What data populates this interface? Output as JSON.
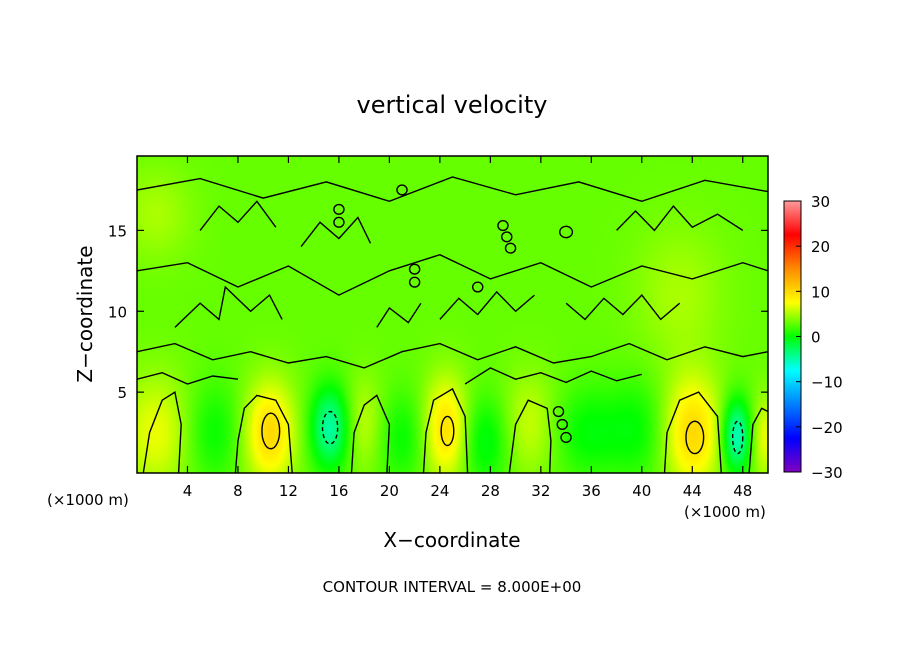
{
  "chart_data": {
    "type": "heatmap",
    "title": "vertical velocity",
    "xlabel": "X−coordinate",
    "ylabel": "Z−coordinate",
    "x_unit": "(×1000 m)",
    "x_unit_right": "(×1000 m)",
    "footer": "CONTOUR INTERVAL = 8.000E+00",
    "xlim": [
      0,
      50
    ],
    "ylim": [
      0,
      19.6
    ],
    "x_ticks": [
      4,
      8,
      12,
      16,
      20,
      24,
      28,
      32,
      36,
      40,
      44,
      48
    ],
    "x_tick_labels": [
      "4",
      "8",
      "12",
      "16",
      "20",
      "24",
      "28",
      "32",
      "36",
      "40",
      "44",
      "48"
    ],
    "y_ticks": [
      5,
      10,
      15
    ],
    "y_tick_labels": [
      "5",
      "10",
      "15"
    ],
    "colorbar": {
      "range": [
        -30,
        30
      ],
      "ticks": [
        30,
        20,
        10,
        0,
        -10,
        -20,
        -30
      ],
      "tick_labels": [
        "30",
        "20",
        "10",
        "0",
        "−10",
        "−20",
        "−30"
      ],
      "colors": [
        "#ff9a9a",
        "#ff0000",
        "#ff8a00",
        "#ffff00",
        "#00ff00",
        "#00ffff",
        "#0080ff",
        "#0000ff",
        "#8000c0"
      ]
    },
    "contour_interval": 8,
    "background_value": 3,
    "features": [
      {
        "x": 1.5,
        "z": 2.5,
        "sx": 2.0,
        "sz": 2.5,
        "w": 4
      },
      {
        "x": 6.0,
        "z": 2.5,
        "sx": 1.6,
        "sz": 2.2,
        "w": -3
      },
      {
        "x": 10.5,
        "z": 2.5,
        "sx": 1.4,
        "sz": 2.2,
        "w": 7
      },
      {
        "x": 15.3,
        "z": 2.8,
        "sx": 1.1,
        "sz": 1.8,
        "w": -8
      },
      {
        "x": 18.0,
        "z": 3.0,
        "sx": 1.2,
        "sz": 2.0,
        "w": 3
      },
      {
        "x": 21.0,
        "z": 2.2,
        "sx": 1.6,
        "sz": 2.0,
        "w": -3
      },
      {
        "x": 24.5,
        "z": 2.7,
        "sx": 1.3,
        "sz": 2.2,
        "w": 7
      },
      {
        "x": 27.5,
        "z": 2.0,
        "sx": 1.5,
        "sz": 2.0,
        "w": -4
      },
      {
        "x": 31.0,
        "z": 3.0,
        "sx": 1.6,
        "sz": 2.2,
        "w": 3
      },
      {
        "x": 35.5,
        "z": 2.5,
        "sx": 1.8,
        "sz": 2.0,
        "w": -3
      },
      {
        "x": 39.5,
        "z": 2.7,
        "sx": 1.8,
        "sz": 2.2,
        "w": -3
      },
      {
        "x": 44.0,
        "z": 2.5,
        "sx": 1.6,
        "sz": 2.4,
        "w": 7
      },
      {
        "x": 47.5,
        "z": 2.3,
        "sx": 0.8,
        "sz": 1.6,
        "w": -9
      },
      {
        "x": 49.8,
        "z": 2.2,
        "sx": 0.8,
        "sz": 1.8,
        "w": 4
      },
      {
        "x": 1.5,
        "z": 16.0,
        "sx": 2.0,
        "sz": 2.0,
        "w": 2
      },
      {
        "x": 43.0,
        "z": 11.0,
        "sx": 2.5,
        "sz": 3.0,
        "w": 2
      }
    ],
    "closed_contours": [
      {
        "x": 10.6,
        "z": 2.6,
        "rx": 0.7,
        "rz": 1.1,
        "dashed": false
      },
      {
        "x": 15.3,
        "z": 2.8,
        "rx": 0.6,
        "rz": 1.0,
        "dashed": true
      },
      {
        "x": 24.6,
        "z": 2.6,
        "rx": 0.5,
        "rz": 0.9,
        "dashed": false
      },
      {
        "x": 44.2,
        "z": 2.2,
        "rx": 0.7,
        "rz": 1.0,
        "dashed": false
      },
      {
        "x": 47.6,
        "z": 2.2,
        "rx": 0.4,
        "rz": 1.0,
        "dashed": true
      },
      {
        "x": 34.0,
        "z": 2.2,
        "rx": 0.4,
        "rz": 0.3,
        "dashed": false
      },
      {
        "x": 33.7,
        "z": 3.0,
        "rx": 0.4,
        "rz": 0.3,
        "dashed": false
      },
      {
        "x": 33.4,
        "z": 3.8,
        "rx": 0.4,
        "rz": 0.3,
        "dashed": false
      },
      {
        "x": 16.0,
        "z": 16.3,
        "rx": 0.4,
        "rz": 0.3,
        "dashed": false
      },
      {
        "x": 16.0,
        "z": 15.5,
        "rx": 0.4,
        "rz": 0.3,
        "dashed": false
      },
      {
        "x": 22.0,
        "z": 12.6,
        "rx": 0.4,
        "rz": 0.3,
        "dashed": false
      },
      {
        "x": 22.0,
        "z": 11.8,
        "rx": 0.4,
        "rz": 0.3,
        "dashed": false
      },
      {
        "x": 29.0,
        "z": 15.3,
        "rx": 0.4,
        "rz": 0.3,
        "dashed": false
      },
      {
        "x": 29.3,
        "z": 14.6,
        "rx": 0.4,
        "rz": 0.3,
        "dashed": false
      },
      {
        "x": 29.6,
        "z": 13.9,
        "rx": 0.4,
        "rz": 0.3,
        "dashed": false
      },
      {
        "x": 34.0,
        "z": 14.9,
        "rx": 0.5,
        "rz": 0.35,
        "dashed": false
      },
      {
        "x": 21.0,
        "z": 17.5,
        "rx": 0.4,
        "rz": 0.3,
        "dashed": false
      },
      {
        "x": 27.0,
        "z": 11.5,
        "rx": 0.4,
        "rz": 0.3,
        "dashed": false
      }
    ],
    "contour_lines": [
      [
        [
          0.5,
          0
        ],
        [
          1.0,
          2.5
        ],
        [
          2.0,
          4.5
        ],
        [
          3.0,
          5.0
        ],
        [
          3.5,
          3.0
        ],
        [
          3.3,
          0
        ]
      ],
      [
        [
          7.8,
          0
        ],
        [
          8.0,
          2.0
        ],
        [
          8.5,
          4.0
        ],
        [
          9.5,
          4.8
        ],
        [
          11.0,
          4.5
        ],
        [
          12.0,
          3.0
        ],
        [
          12.3,
          0
        ]
      ],
      [
        [
          17.0,
          0
        ],
        [
          17.2,
          2.5
        ],
        [
          18.0,
          4.2
        ],
        [
          19.0,
          4.8
        ],
        [
          20.0,
          3.0
        ],
        [
          19.8,
          0
        ]
      ],
      [
        [
          22.7,
          0
        ],
        [
          22.9,
          2.5
        ],
        [
          23.5,
          4.5
        ],
        [
          25.0,
          5.2
        ],
        [
          26.0,
          3.5
        ],
        [
          26.2,
          0
        ]
      ],
      [
        [
          29.5,
          0
        ],
        [
          30.0,
          3.0
        ],
        [
          31.0,
          4.5
        ],
        [
          32.5,
          4.0
        ],
        [
          32.8,
          2.0
        ],
        [
          32.7,
          0
        ]
      ],
      [
        [
          41.8,
          0
        ],
        [
          42.0,
          2.5
        ],
        [
          43.0,
          4.5
        ],
        [
          44.5,
          5.0
        ],
        [
          46.0,
          3.5
        ],
        [
          46.3,
          0
        ]
      ],
      [
        [
          48.5,
          0
        ],
        [
          48.8,
          3.0
        ],
        [
          49.5,
          4.0
        ],
        [
          50,
          3.8
        ]
      ],
      [
        [
          0,
          7.5
        ],
        [
          3.0,
          8.0
        ],
        [
          6.0,
          7.0
        ],
        [
          9.0,
          7.5
        ],
        [
          12.0,
          6.8
        ],
        [
          15.0,
          7.2
        ],
        [
          18.0,
          6.5
        ],
        [
          21.0,
          7.5
        ],
        [
          24.0,
          8.0
        ],
        [
          27.0,
          7.0
        ],
        [
          30.0,
          7.8
        ],
        [
          33.0,
          6.8
        ],
        [
          36.0,
          7.2
        ],
        [
          39.0,
          8.0
        ],
        [
          42.0,
          7.0
        ],
        [
          45.0,
          7.8
        ],
        [
          48.0,
          7.2
        ],
        [
          50,
          7.5
        ]
      ],
      [
        [
          0,
          12.5
        ],
        [
          4.0,
          13.0
        ],
        [
          8.0,
          11.5
        ],
        [
          12.0,
          12.8
        ],
        [
          16.0,
          11.0
        ],
        [
          20.0,
          12.5
        ],
        [
          24.0,
          13.5
        ],
        [
          28.0,
          12.0
        ],
        [
          32.0,
          13.0
        ],
        [
          36.0,
          11.5
        ],
        [
          40.0,
          12.8
        ],
        [
          44.0,
          12.0
        ],
        [
          48.0,
          13.0
        ],
        [
          50,
          12.5
        ]
      ],
      [
        [
          0,
          17.5
        ],
        [
          5.0,
          18.2
        ],
        [
          10.0,
          17.0
        ],
        [
          15.0,
          18.0
        ],
        [
          20.0,
          16.8
        ],
        [
          25.0,
          18.3
        ],
        [
          30.0,
          17.2
        ],
        [
          35.0,
          18.0
        ],
        [
          40.0,
          16.8
        ],
        [
          45.0,
          18.1
        ],
        [
          50,
          17.4
        ]
      ],
      [
        [
          3.0,
          9.0
        ],
        [
          5.0,
          10.5
        ],
        [
          6.5,
          9.5
        ],
        [
          7.0,
          11.5
        ],
        [
          9.0,
          10.0
        ],
        [
          10.5,
          11.0
        ],
        [
          11.5,
          9.5
        ]
      ],
      [
        [
          13.0,
          14.0
        ],
        [
          14.5,
          15.5
        ],
        [
          16.0,
          14.5
        ],
        [
          17.5,
          15.8
        ],
        [
          18.5,
          14.2
        ]
      ],
      [
        [
          24.0,
          9.5
        ],
        [
          25.5,
          10.8
        ],
        [
          27.0,
          9.8
        ],
        [
          28.5,
          11.2
        ],
        [
          30.0,
          10.0
        ],
        [
          31.5,
          11.0
        ]
      ],
      [
        [
          34.0,
          10.5
        ],
        [
          35.5,
          9.5
        ],
        [
          37.0,
          10.8
        ],
        [
          38.5,
          9.8
        ],
        [
          40.0,
          11.0
        ],
        [
          41.5,
          9.5
        ],
        [
          43.0,
          10.5
        ]
      ],
      [
        [
          38.0,
          15.0
        ],
        [
          39.5,
          16.2
        ],
        [
          41.0,
          15.0
        ],
        [
          42.5,
          16.5
        ],
        [
          44.0,
          15.2
        ],
        [
          46.0,
          16.0
        ],
        [
          48.0,
          15.0
        ]
      ],
      [
        [
          5.0,
          15.0
        ],
        [
          6.5,
          16.5
        ],
        [
          8.0,
          15.5
        ],
        [
          9.5,
          16.8
        ],
        [
          11.0,
          15.2
        ]
      ],
      [
        [
          19.0,
          9.0
        ],
        [
          20.0,
          10.2
        ],
        [
          21.5,
          9.3
        ],
        [
          22.5,
          10.5
        ]
      ],
      [
        [
          0,
          5.8
        ],
        [
          2.0,
          6.2
        ],
        [
          4.0,
          5.5
        ],
        [
          6.0,
          6.0
        ],
        [
          8.0,
          5.8
        ]
      ],
      [
        [
          26.0,
          5.5
        ],
        [
          28.0,
          6.5
        ],
        [
          30.0,
          5.8
        ],
        [
          32.0,
          6.2
        ],
        [
          34.0,
          5.6
        ],
        [
          36.0,
          6.3
        ],
        [
          38.0,
          5.7
        ],
        [
          40.0,
          6.1
        ]
      ]
    ]
  }
}
